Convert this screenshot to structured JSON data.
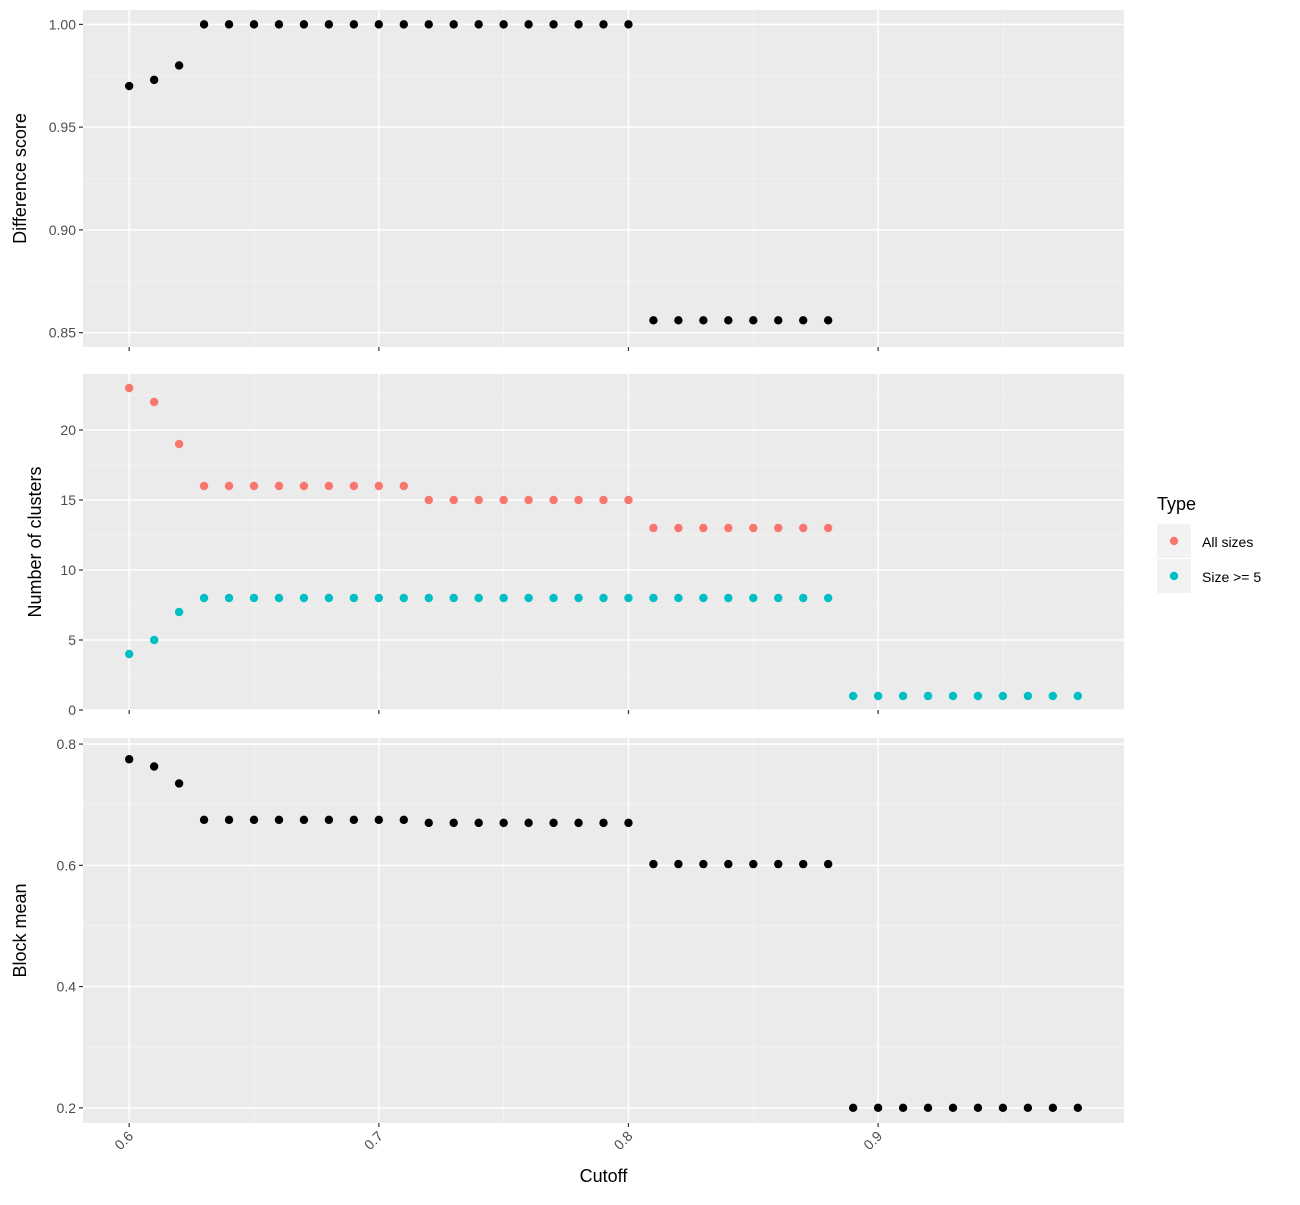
{
  "colors": {
    "panel_background": "#ebebeb",
    "grid_major": "#ffffff",
    "grid_minor": "#f4f4f4",
    "point_black": "#000000",
    "all_sizes": "#f8766d",
    "size_ge_5": "#00bfc4"
  },
  "chart_data": {
    "type": "scatter",
    "layout": "faceted-vertical",
    "xlabel": "Cutoff",
    "x_ticks": [
      "0.6",
      "0.7",
      "0.8",
      "0.9"
    ],
    "xlim": [
      0.5815,
      0.9985
    ],
    "grid": true,
    "legend": {
      "title": "Type",
      "placement": "right",
      "entries": [
        "All sizes",
        "Size >= 5"
      ]
    },
    "panels": [
      {
        "ylabel": "Difference score",
        "ylim": [
          0.843,
          1.007
        ],
        "y_ticks": [
          "0.85",
          "0.90",
          "0.95",
          "1.00"
        ],
        "series": [
          {
            "color": "#000000",
            "x": [
              0.6,
              0.61,
              0.62,
              0.63,
              0.64,
              0.65,
              0.66,
              0.67,
              0.68,
              0.69,
              0.7,
              0.71,
              0.72,
              0.73,
              0.74,
              0.75,
              0.76,
              0.77,
              0.78,
              0.79,
              0.8,
              0.81,
              0.82,
              0.83,
              0.84,
              0.85,
              0.86,
              0.87,
              0.88
            ],
            "y": [
              0.97,
              0.973,
              0.98,
              1.0,
              1.0,
              1.0,
              1.0,
              1.0,
              1.0,
              1.0,
              1.0,
              1.0,
              1.0,
              1.0,
              1.0,
              1.0,
              1.0,
              1.0,
              1.0,
              1.0,
              1.0,
              0.856,
              0.856,
              0.856,
              0.856,
              0.856,
              0.856,
              0.856,
              0.856
            ]
          }
        ]
      },
      {
        "ylabel": "Number of clusters",
        "ylim": [
          0,
          24
        ],
        "y_ticks": [
          "0",
          "5",
          "10",
          "15",
          "20"
        ],
        "series": [
          {
            "name": "All sizes",
            "color": "#f8766d",
            "x": [
              0.6,
              0.61,
              0.62,
              0.63,
              0.64,
              0.65,
              0.66,
              0.67,
              0.68,
              0.69,
              0.7,
              0.71,
              0.72,
              0.73,
              0.74,
              0.75,
              0.76,
              0.77,
              0.78,
              0.79,
              0.8,
              0.81,
              0.82,
              0.83,
              0.84,
              0.85,
              0.86,
              0.87,
              0.88
            ],
            "y": [
              23,
              22,
              19,
              16,
              16,
              16,
              16,
              16,
              16,
              16,
              16,
              16,
              15,
              15,
              15,
              15,
              15,
              15,
              15,
              15,
              15,
              13,
              13,
              13,
              13,
              13,
              13,
              13,
              13
            ]
          },
          {
            "name": "Size >= 5",
            "color": "#00bfc4",
            "x": [
              0.6,
              0.61,
              0.62,
              0.63,
              0.64,
              0.65,
              0.66,
              0.67,
              0.68,
              0.69,
              0.7,
              0.71,
              0.72,
              0.73,
              0.74,
              0.75,
              0.76,
              0.77,
              0.78,
              0.79,
              0.8,
              0.81,
              0.82,
              0.83,
              0.84,
              0.85,
              0.86,
              0.87,
              0.88,
              0.89,
              0.9,
              0.91,
              0.92,
              0.93,
              0.94,
              0.95,
              0.96,
              0.97,
              0.98
            ],
            "y": [
              4,
              5,
              7,
              8,
              8,
              8,
              8,
              8,
              8,
              8,
              8,
              8,
              8,
              8,
              8,
              8,
              8,
              8,
              8,
              8,
              8,
              8,
              8,
              8,
              8,
              8,
              8,
              8,
              8,
              1,
              1,
              1,
              1,
              1,
              1,
              1,
              1,
              1,
              1
            ]
          }
        ]
      },
      {
        "ylabel": "Block mean",
        "ylim": [
          0.175,
          0.81
        ],
        "y_ticks": [
          "0.2",
          "0.4",
          "0.6",
          "0.8"
        ],
        "series": [
          {
            "color": "#000000",
            "x": [
              0.6,
              0.61,
              0.62,
              0.63,
              0.64,
              0.65,
              0.66,
              0.67,
              0.68,
              0.69,
              0.7,
              0.71,
              0.72,
              0.73,
              0.74,
              0.75,
              0.76,
              0.77,
              0.78,
              0.79,
              0.8,
              0.81,
              0.82,
              0.83,
              0.84,
              0.85,
              0.86,
              0.87,
              0.88,
              0.89,
              0.9,
              0.91,
              0.92,
              0.93,
              0.94,
              0.95,
              0.96,
              0.97,
              0.98
            ],
            "y": [
              0.775,
              0.763,
              0.735,
              0.675,
              0.675,
              0.675,
              0.675,
              0.675,
              0.675,
              0.675,
              0.675,
              0.675,
              0.67,
              0.67,
              0.67,
              0.67,
              0.67,
              0.67,
              0.67,
              0.67,
              0.67,
              0.602,
              0.602,
              0.602,
              0.602,
              0.602,
              0.602,
              0.602,
              0.602,
              0.2,
              0.2,
              0.2,
              0.2,
              0.2,
              0.2,
              0.2,
              0.2,
              0.2,
              0.2
            ]
          }
        ]
      }
    ]
  }
}
